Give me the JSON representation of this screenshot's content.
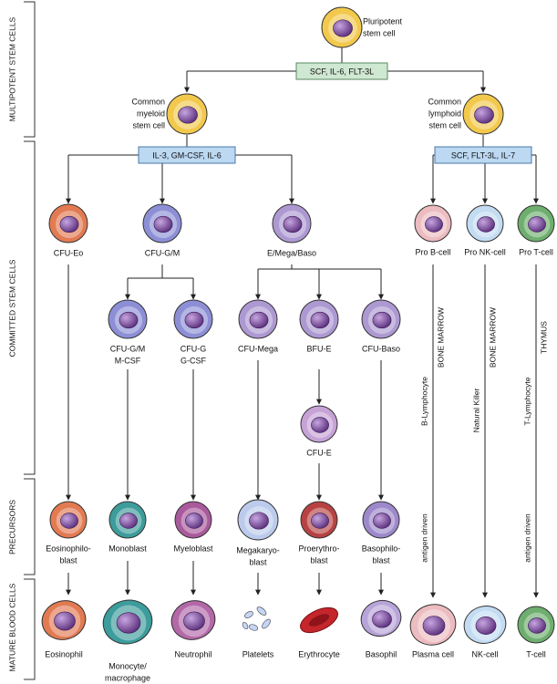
{
  "side_labels": [
    "MULTIPOTENT STEM CELLS",
    "COMMITTED STEM CELLS",
    "PRECURSORS",
    "MATURE BLOOD CELLS"
  ],
  "cytokine_boxes": [
    "SCF, IL-6, FLT-3L",
    "IL-3, GM-CSF, IL-6",
    "SCF, FLT-3L, IL-7"
  ],
  "nodes": [
    {
      "label": [
        "Pluripotent",
        "stem cell"
      ]
    },
    {
      "label": [
        "Common",
        "myeloid",
        "stem cell"
      ]
    },
    {
      "label": [
        "Common",
        "lymphoid",
        "stem cell"
      ]
    },
    {
      "label": [
        "CFU-Eo"
      ]
    },
    {
      "label": [
        "CFU-G/M"
      ]
    },
    {
      "label": [
        "E/Mega/Baso"
      ]
    },
    {
      "label": [
        "Pro B-cell"
      ]
    },
    {
      "label": [
        "Pro NK-cell"
      ]
    },
    {
      "label": [
        "Pro T-cell"
      ]
    },
    {
      "label": [
        "CFU-G/M",
        "M-CSF"
      ]
    },
    {
      "label": [
        "CFU-G",
        "G-CSF"
      ]
    },
    {
      "label": [
        "CFU-Mega"
      ]
    },
    {
      "label": [
        "BFU-E"
      ]
    },
    {
      "label": [
        "CFU-Baso"
      ]
    },
    {
      "label": [
        "CFU-E"
      ]
    },
    {
      "label": [
        "Eosinophilo-",
        "blast"
      ]
    },
    {
      "label": [
        "Monoblast"
      ]
    },
    {
      "label": [
        "Myeloblast"
      ]
    },
    {
      "label": [
        "Megakaryo-",
        "blast"
      ]
    },
    {
      "label": [
        "Proerythro-",
        "blast"
      ]
    },
    {
      "label": [
        "Basophilo-",
        "blast"
      ]
    },
    {
      "label": [
        "Eosinophil"
      ]
    },
    {
      "label": [
        "Monocyte/",
        "macrophage"
      ]
    },
    {
      "label": [
        "Neutrophil"
      ]
    },
    {
      "label": [
        "Platelets"
      ]
    },
    {
      "label": [
        "Erythrocyte"
      ]
    },
    {
      "label": [
        "Basophil"
      ]
    },
    {
      "label": [
        "Plasma cell"
      ]
    },
    {
      "label": [
        "NK-cell"
      ]
    },
    {
      "label": [
        "T-cell"
      ]
    }
  ],
  "pathway_labels": [
    "B-Lymphocyte",
    "antigen driven",
    "BONE MARROW",
    "Natural Killer",
    "BONE MARROW",
    "T-Lymphocyte",
    "antigen driven",
    "THYMUS"
  ]
}
